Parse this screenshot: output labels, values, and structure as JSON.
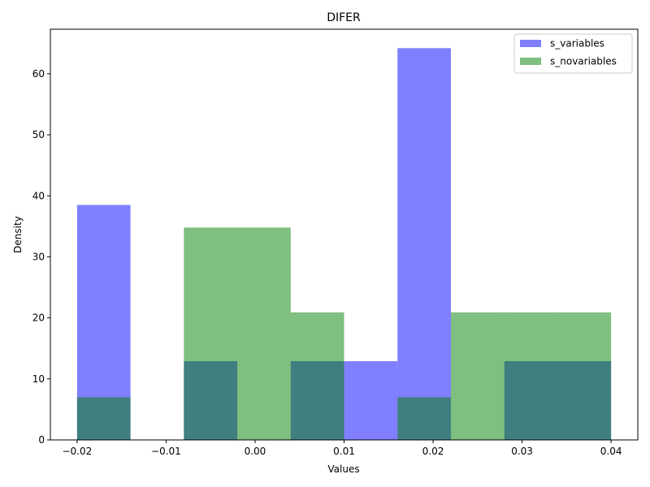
{
  "chart_data": {
    "type": "bar",
    "title": "DIFER",
    "xlabel": "Values",
    "ylabel": "Density",
    "xlim": [
      -0.023,
      0.043
    ],
    "ylim": [
      0,
      67.3
    ],
    "xticks": [
      -0.02,
      -0.01,
      0.0,
      0.01,
      0.02,
      0.03,
      0.04
    ],
    "xtick_labels": [
      "−0.02",
      "−0.01",
      "0.00",
      "0.01",
      "0.02",
      "0.03",
      "0.04"
    ],
    "yticks": [
      0,
      10,
      20,
      30,
      40,
      50,
      60
    ],
    "ytick_labels": [
      "0",
      "10",
      "20",
      "30",
      "40",
      "50",
      "60"
    ],
    "grid": false,
    "legend_position": "top-right",
    "series": [
      {
        "name": "s_variables",
        "color": "#0000ff",
        "alpha": 0.5,
        "bin_edges": [
          -0.02,
          -0.014,
          -0.008,
          -0.002,
          0.004,
          0.01,
          0.016,
          0.022,
          0.028,
          0.034,
          0.04
        ],
        "values": [
          38.5,
          0.0,
          12.9,
          0.0,
          12.9,
          12.9,
          64.2,
          0.0,
          12.9,
          12.9
        ]
      },
      {
        "name": "s_novariables",
        "color": "#008000",
        "alpha": 0.5,
        "bin_edges": [
          -0.02,
          -0.014,
          -0.008,
          -0.002,
          0.004,
          0.01,
          0.016,
          0.022,
          0.028,
          0.034,
          0.04
        ],
        "values": [
          7.0,
          0.0,
          34.8,
          34.8,
          20.9,
          0.0,
          7.0,
          20.9,
          20.9,
          20.9
        ]
      }
    ]
  }
}
